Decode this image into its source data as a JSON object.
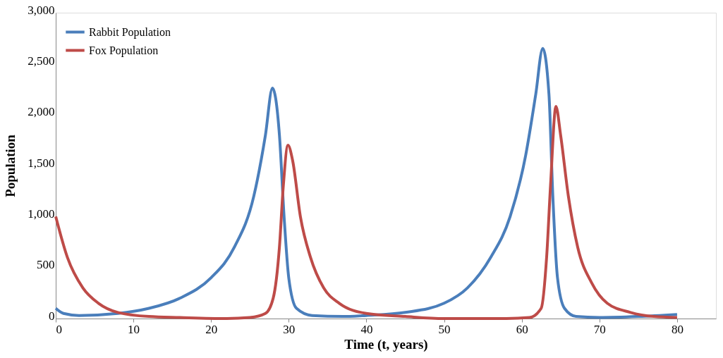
{
  "chart_data": {
    "type": "line",
    "xlabel": "Time (t, years)",
    "ylabel": "Population",
    "xlim": [
      0,
      85
    ],
    "xticks": [
      0,
      10,
      20,
      30,
      40,
      50,
      60,
      70,
      80
    ],
    "ylim": [
      0,
      3000
    ],
    "yticks": [
      0,
      500,
      {
        "value": 1000,
        "label": "1,000"
      },
      {
        "value": 1500,
        "label": "1,500"
      },
      {
        "value": 2000,
        "label": "2,000"
      },
      {
        "value": 2500,
        "label": "2,500"
      },
      {
        "value": 3000,
        "label": "3,000"
      }
    ],
    "grid": false,
    "legend": "top left",
    "marker": "none",
    "line_style": "solid",
    "series": [
      {
        "name": "Rabbit Population",
        "color": "#4a7ebb",
        "x": [
          0,
          1,
          3,
          8,
          12,
          16,
          20,
          23,
          25.5,
          27,
          27.9,
          28.8,
          29.4,
          30,
          31,
          33,
          37,
          40,
          45,
          50,
          53,
          56,
          58.5,
          60.5,
          61.8,
          62.7,
          63.5,
          64,
          64.6,
          65.5,
          67,
          70,
          75,
          80
        ],
        "values": [
          100,
          50,
          30,
          50,
          100,
          200,
          400,
          700,
          1200,
          1800,
          2260,
          1800,
          1000,
          400,
          100,
          30,
          20,
          30,
          60,
          150,
          300,
          600,
          1000,
          1600,
          2200,
          2650,
          2200,
          1200,
          400,
          100,
          20,
          10,
          20,
          40
        ]
      },
      {
        "name": "Fox Population",
        "color": "#be4b48",
        "x": [
          0,
          1.5,
          3.5,
          5.5,
          8,
          12,
          16,
          22,
          25,
          27,
          28,
          28.8,
          29.3,
          29.9,
          30.5,
          31.5,
          32.8,
          34.5,
          36.5,
          40,
          45,
          50,
          58,
          61,
          62.5,
          63.2,
          63.7,
          64.4,
          65,
          66,
          67.2,
          69,
          71,
          74,
          77,
          80
        ],
        "values": [
          1000,
          600,
          300,
          150,
          60,
          20,
          10,
          0,
          10,
          50,
          200,
          700,
          1300,
          1700,
          1550,
          1000,
          600,
          300,
          150,
          50,
          20,
          0,
          0,
          10,
          100,
          600,
          1300,
          2080,
          1800,
          1200,
          700,
          350,
          150,
          60,
          20,
          10
        ]
      }
    ]
  }
}
